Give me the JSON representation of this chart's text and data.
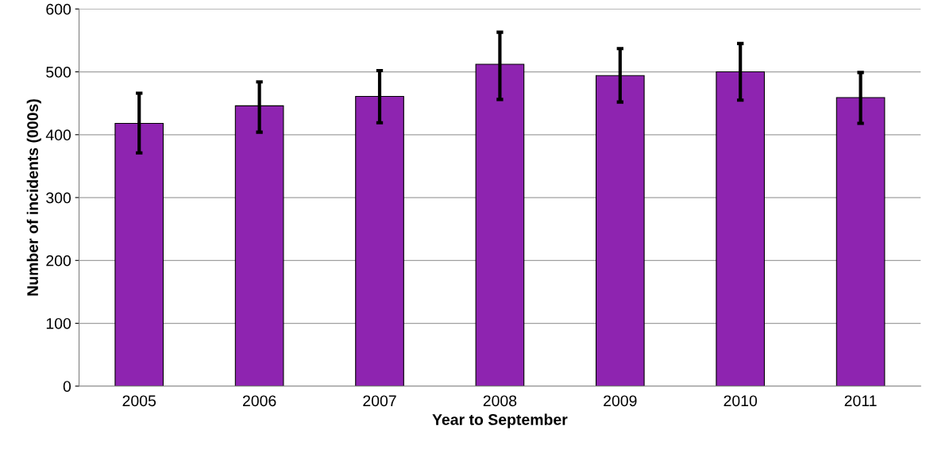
{
  "chart_data": {
    "type": "bar",
    "xlabel": "Year to September",
    "ylabel": "Number of incidents (000s)",
    "categories": [
      "2005",
      "2006",
      "2007",
      "2008",
      "2009",
      "2010",
      "2011"
    ],
    "values": [
      418,
      446,
      461,
      512,
      494,
      500,
      459
    ],
    "errors": [
      [
        371,
        466
      ],
      [
        404,
        484
      ],
      [
        419,
        502
      ],
      [
        456,
        563
      ],
      [
        452,
        537
      ],
      [
        455,
        545
      ],
      [
        418,
        499
      ]
    ],
    "color": "#8e24b0",
    "ylim": [
      0,
      600
    ],
    "yticks": [
      0,
      100,
      200,
      300,
      400,
      500,
      600
    ],
    "grid": "y",
    "legend": false
  }
}
